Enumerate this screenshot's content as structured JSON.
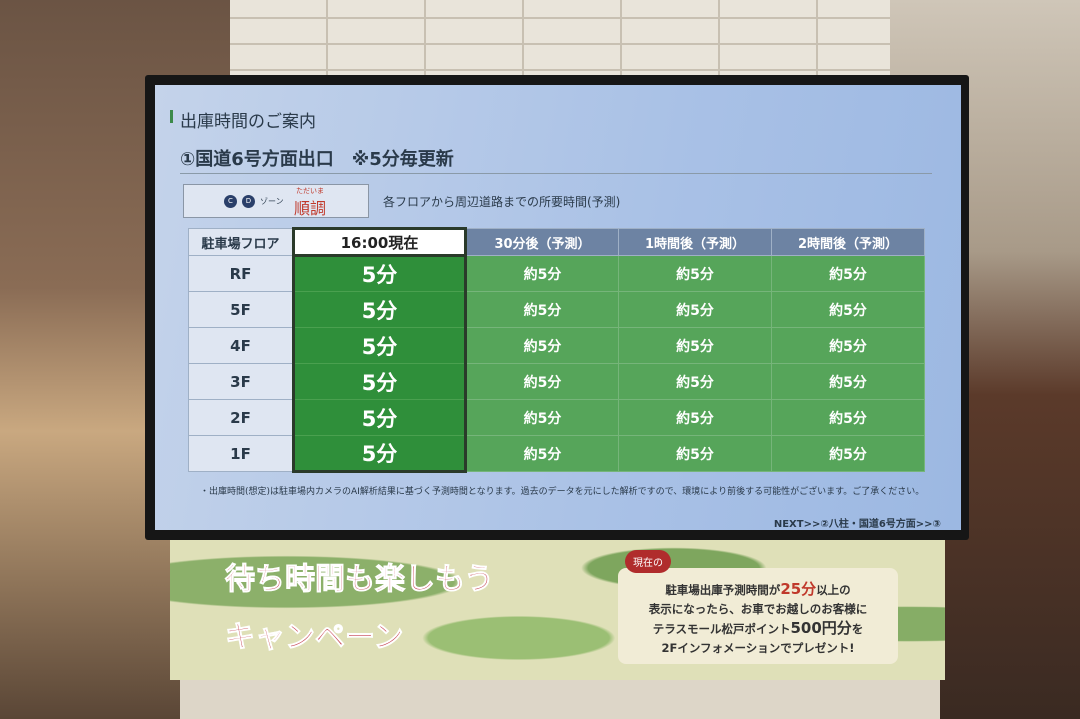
{
  "screen": {
    "heading": "出庫時間のご案内",
    "exit_title": "①国道6号方面出口　※5分毎更新",
    "legend": {
      "zone_c": "C",
      "zone_d": "D",
      "zone_label": "ゾーン",
      "status_small": "ただいま",
      "status": "順調",
      "status_color": "#c0392b"
    },
    "description": "各フロアから周辺道路までの所要時間(予測)",
    "table": {
      "headers": [
        "駐車場フロア",
        "16:00現在",
        "30分後（予測）",
        "1時間後（予測）",
        "2時間後（予測）"
      ],
      "rows": [
        {
          "floor": "RF",
          "now": "5分",
          "m30": "約5分",
          "h1": "約5分",
          "h2": "約5分"
        },
        {
          "floor": "5F",
          "now": "5分",
          "m30": "約5分",
          "h1": "約5分",
          "h2": "約5分"
        },
        {
          "floor": "4F",
          "now": "5分",
          "m30": "約5分",
          "h1": "約5分",
          "h2": "約5分"
        },
        {
          "floor": "3F",
          "now": "5分",
          "m30": "約5分",
          "h1": "約5分",
          "h2": "約5分"
        },
        {
          "floor": "2F",
          "now": "5分",
          "m30": "約5分",
          "h1": "約5分",
          "h2": "約5分"
        },
        {
          "floor": "1F",
          "now": "5分",
          "m30": "約5分",
          "h1": "約5分",
          "h2": "約5分"
        }
      ],
      "status_color": "#2f8f3a"
    },
    "note": "・出庫時間(想定)は駐車場内カメラのAI解析結果に基づく予測時間となります。過去のデータを元にした解析ですので、環境により前後する可能性がございます。ご了承ください。",
    "next": "NEXT>>②八柱・国道6号方面>>③"
  },
  "banner": {
    "title_line1": "待ち時間も楽しもう",
    "title_line2": "キャンペーン",
    "badge": "現在の",
    "promo_l1a": "駐車場出庫予測時間が",
    "promo_l1b": "25分",
    "promo_l1c": "以上の",
    "promo_l2": "表示になったら、お車でお越しのお客様に",
    "promo_l3a": "テラスモール松戸ポイント",
    "promo_l3b": "500円分",
    "promo_l3c": "を",
    "promo_l4": "2Fインフォメーションでプレゼント!"
  }
}
